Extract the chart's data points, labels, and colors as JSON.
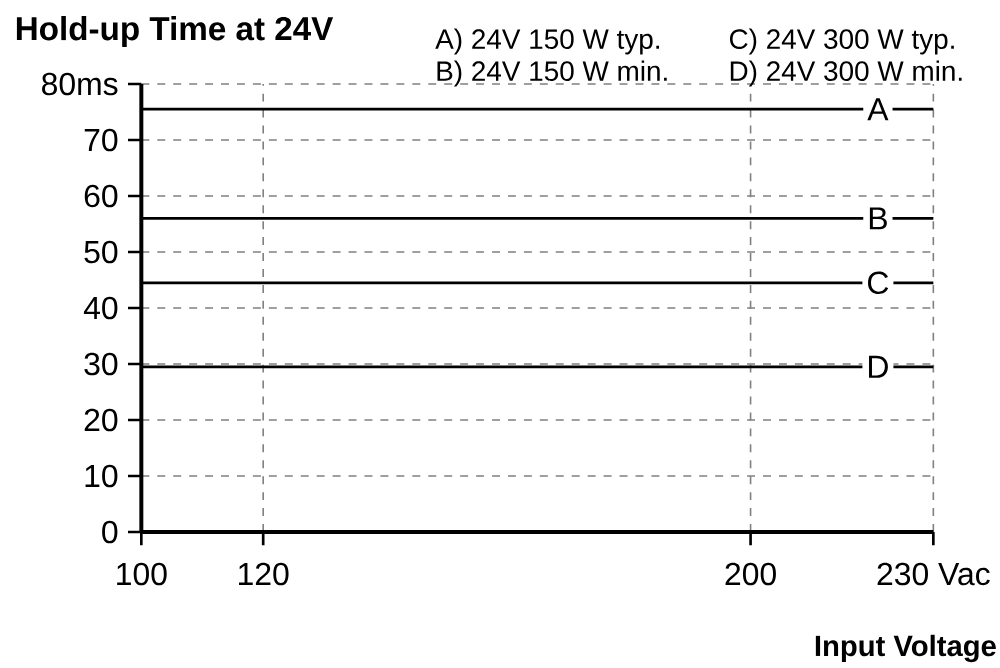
{
  "chart_data": {
    "type": "line",
    "title": "Hold-up Time at 24V",
    "xlabel": "Input Voltage",
    "x": [
      100,
      230
    ],
    "series": [
      {
        "name": "A",
        "color": "#000000",
        "values": [
          75.5,
          75.5
        ]
      },
      {
        "name": "B",
        "color": "#000000",
        "values": [
          56,
          56
        ]
      },
      {
        "name": "C",
        "color": "#000000",
        "values": [
          44.5,
          44.5
        ]
      },
      {
        "name": "D",
        "color": "#000000",
        "values": [
          29.5,
          29.5
        ]
      }
    ],
    "xlim": [
      100,
      230
    ],
    "ylim": [
      0,
      80
    ],
    "xticks": [
      100,
      120,
      200,
      {
        "value": 230,
        "label": "230 Vac"
      }
    ],
    "yticks": [
      0,
      10,
      20,
      30,
      40,
      50,
      60,
      70,
      {
        "value": 80,
        "label": "80ms"
      }
    ],
    "grid": true,
    "line_style": "solid",
    "marker": "none",
    "annotations": [
      "A) 24V 150 W typ.",
      "B) 24V 150 W min.",
      "C) 24V 300 W typ.",
      "D) 24V 300 W min."
    ]
  }
}
